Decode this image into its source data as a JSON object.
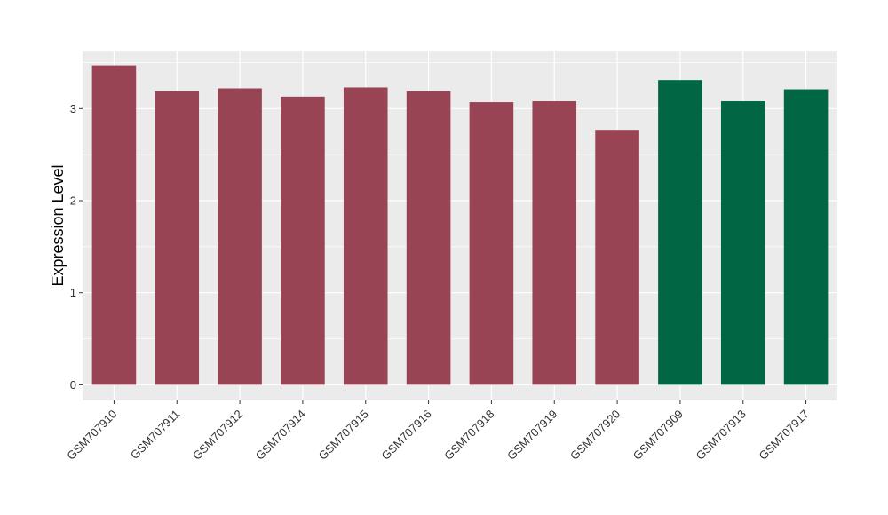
{
  "chart_data": {
    "type": "bar",
    "title": "",
    "xlabel": "",
    "ylabel": "Expression Level",
    "categories": [
      "GSM707910",
      "GSM707911",
      "GSM707912",
      "GSM707914",
      "GSM707915",
      "GSM707916",
      "GSM707918",
      "GSM707919",
      "GSM707920",
      "GSM707909",
      "GSM707913",
      "GSM707917"
    ],
    "values": [
      3.47,
      3.19,
      3.22,
      3.13,
      3.23,
      3.19,
      3.07,
      3.08,
      2.77,
      3.31,
      3.08,
      3.21
    ],
    "bar_colors": [
      "#994455",
      "#994455",
      "#994455",
      "#994455",
      "#994455",
      "#994455",
      "#994455",
      "#994455",
      "#994455",
      "#006644",
      "#006644",
      "#006644"
    ],
    "ylim": [
      -0.17,
      3.63
    ],
    "yticks": [
      0,
      1,
      2,
      3
    ],
    "ytick_labels": [
      "0",
      "1",
      "2",
      "3"
    ],
    "grid": true,
    "panel_background": "#EBEBEB",
    "gridline_color": "#FFFFFF"
  }
}
